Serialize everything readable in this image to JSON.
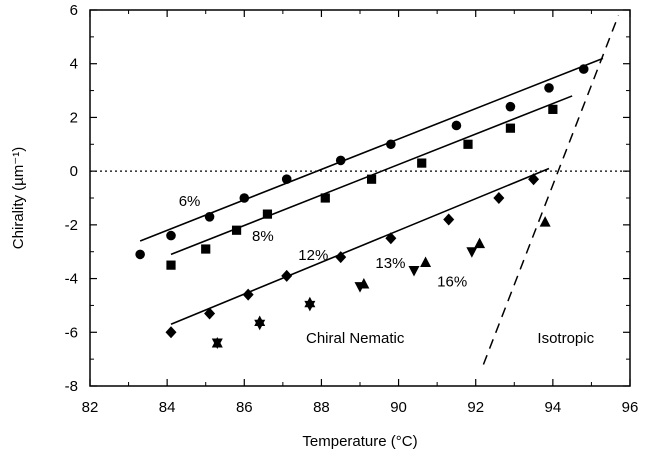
{
  "chart_data": {
    "type": "scatter",
    "xlabel": "Temperature  (°C)",
    "ylabel": "Chirality  (µm⁻¹)",
    "xlim": [
      82,
      96
    ],
    "ylim": [
      -8,
      6
    ],
    "xticks": [
      82,
      84,
      86,
      88,
      90,
      92,
      94,
      96
    ],
    "yticks": [
      -8,
      -6,
      -4,
      -2,
      0,
      2,
      4,
      6
    ],
    "grid": false,
    "legend": "none",
    "zero_line": {
      "y": 0,
      "style": "dotted"
    },
    "phase_boundary": {
      "style": "dashed",
      "points": [
        [
          92.2,
          -7.2
        ],
        [
          95.7,
          5.8
        ]
      ]
    },
    "series": [
      {
        "label": "6%",
        "marker": "circle",
        "points": [
          [
            83.3,
            -3.1
          ],
          [
            84.1,
            -2.4
          ],
          [
            85.1,
            -1.7
          ],
          [
            86.0,
            -1.0
          ],
          [
            87.1,
            -0.3
          ],
          [
            88.5,
            0.4
          ],
          [
            89.8,
            1.0
          ],
          [
            91.5,
            1.7
          ],
          [
            92.9,
            2.4
          ],
          [
            93.9,
            3.1
          ],
          [
            94.8,
            3.8
          ]
        ],
        "fit": [
          [
            83.3,
            -2.6
          ],
          [
            95.3,
            4.2
          ]
        ]
      },
      {
        "label": "8%",
        "marker": "square",
        "points": [
          [
            84.1,
            -3.5
          ],
          [
            85.0,
            -2.9
          ],
          [
            85.8,
            -2.2
          ],
          [
            86.6,
            -1.6
          ],
          [
            88.1,
            -1.0
          ],
          [
            89.3,
            -0.3
          ],
          [
            90.6,
            0.3
          ],
          [
            91.8,
            1.0
          ],
          [
            92.9,
            1.6
          ],
          [
            94.0,
            2.3
          ]
        ],
        "fit": [
          [
            84.1,
            -3.1
          ],
          [
            94.5,
            2.8
          ]
        ]
      },
      {
        "label": "12%",
        "marker": "diamond",
        "points": [
          [
            84.1,
            -6.0
          ],
          [
            85.1,
            -5.3
          ],
          [
            86.1,
            -4.6
          ],
          [
            87.1,
            -3.9
          ],
          [
            88.5,
            -3.2
          ],
          [
            89.8,
            -2.5
          ],
          [
            91.3,
            -1.8
          ],
          [
            92.6,
            -1.0
          ],
          [
            93.5,
            -0.3
          ]
        ],
        "fit": [
          [
            84.1,
            -5.7
          ],
          [
            93.9,
            0.1
          ]
        ]
      },
      {
        "label": "13%",
        "marker": "down-triangle",
        "points": [
          [
            85.3,
            -6.4
          ],
          [
            86.4,
            -5.7
          ],
          [
            87.7,
            -5.0
          ],
          [
            89.0,
            -4.3
          ],
          [
            90.4,
            -3.7
          ],
          [
            91.9,
            -3.0
          ]
        ]
      },
      {
        "label": "16%",
        "marker": "up-triangle",
        "points": [
          [
            85.3,
            -6.4
          ],
          [
            86.4,
            -5.6
          ],
          [
            87.7,
            -4.9
          ],
          [
            89.1,
            -4.2
          ],
          [
            90.7,
            -3.4
          ],
          [
            92.1,
            -2.7
          ],
          [
            93.8,
            -1.9
          ]
        ]
      }
    ],
    "annotations": [
      {
        "text": "6%",
        "x": 84.3,
        "y": -1.3
      },
      {
        "text": "8%",
        "x": 86.2,
        "y": -2.6
      },
      {
        "text": "12%",
        "x": 87.4,
        "y": -3.3
      },
      {
        "text": "13%",
        "x": 89.4,
        "y": -3.6
      },
      {
        "text": "16%",
        "x": 91.0,
        "y": -4.3
      },
      {
        "text": "Chiral Nematic",
        "x": 87.6,
        "y": -6.4
      },
      {
        "text": "Isotropic",
        "x": 93.6,
        "y": -6.4
      }
    ]
  }
}
